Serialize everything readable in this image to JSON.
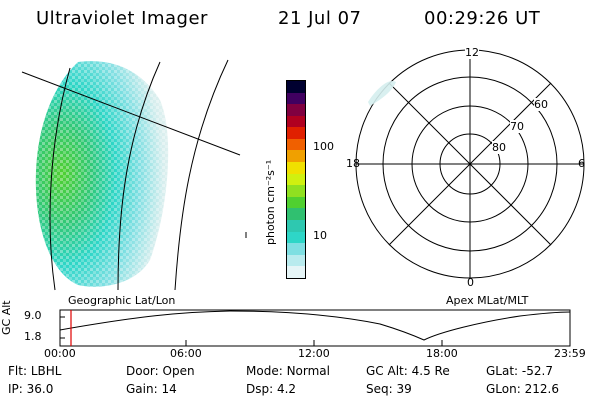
{
  "header": {
    "instrument": "Ultraviolet Imager",
    "date": "21 Jul 07",
    "time": "00:29:26 UT"
  },
  "geo_panel": {
    "label": "Geographic Lat/Lon"
  },
  "colorbar": {
    "unit_label": "photon cm⁻²s⁻¹",
    "ticks": [
      "100",
      "10"
    ],
    "colors": [
      "#e6f5f7",
      "#b9ebee",
      "#7fdfe2",
      "#2ed6c7",
      "#2ec8b0",
      "#30c070",
      "#50d030",
      "#90e020",
      "#d0f010",
      "#f0e000",
      "#f0a000",
      "#f06000",
      "#e02000",
      "#b00020",
      "#800040",
      "#400060",
      "#000030"
    ]
  },
  "polar_panel": {
    "label": "Apex MLat/MLT",
    "mlt_labels": {
      "top": "12",
      "right": "6",
      "bottom": "0",
      "left": "18"
    },
    "lat_labels": [
      "60",
      "70",
      "80"
    ]
  },
  "timeline": {
    "y_label": "GC Alt",
    "y_ticks": [
      "9.0",
      "1.8"
    ],
    "x_ticks": [
      "00:00",
      "06:00",
      "12:00",
      "18:00",
      "23:59"
    ]
  },
  "status": {
    "row1": [
      {
        "label": "Flt:",
        "value": "LBHL"
      },
      {
        "label": "Door:",
        "value": "Open"
      },
      {
        "label": "Mode:",
        "value": "Normal"
      },
      {
        "label": "GC Alt:",
        "value": "4.5 Re"
      },
      {
        "label": "GLat:",
        "value": "-52.7"
      }
    ],
    "row2": [
      {
        "label": "IP:",
        "value": "36.0"
      },
      {
        "label": "Gain:",
        "value": "14"
      },
      {
        "label": "Dsp:",
        "value": "4.2"
      },
      {
        "label": "Seq:",
        "value": "39"
      },
      {
        "label": "GLon:",
        "value": "212.6"
      }
    ]
  }
}
